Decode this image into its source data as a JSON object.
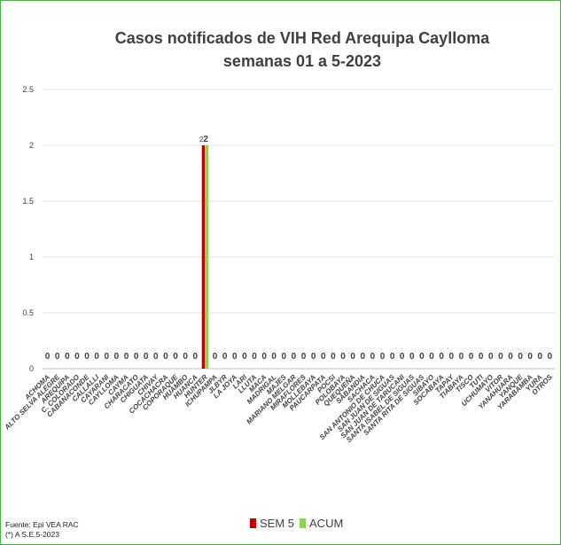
{
  "chart_data": {
    "type": "bar",
    "title": "Casos notificados de VIH Red Arequipa Caylloma",
    "subtitle": "semanas 01 a 5-2023",
    "ylim": [
      0,
      2.5
    ],
    "yticks": [
      "0",
      "0.5",
      "1",
      "1.5",
      "2",
      "2.5"
    ],
    "grid": true,
    "legend_position": "bottom",
    "categories": [
      "ACHOMA",
      "ALTO SELVA ALEGRE",
      "AREQUIPA",
      "C. COLORADO",
      "CABANACONDE",
      "CALLALLI",
      "CAYARANI",
      "CAYLLOMA",
      "CAYMA",
      "CHARACATO",
      "CHIGUATA",
      "CHIVAY",
      "COCACHACRA",
      "COPORAQUE",
      "HUAMBO",
      "HUANCA",
      "HUNTER",
      "ICHUPAMPA",
      "JLBYR",
      "LA JOYA",
      "LARI",
      "LLUTA",
      "MACA",
      "MADRIGAL",
      "MAJES",
      "MARIANO MELGAR",
      "MIRAFLORES",
      "MOLLEBAYA",
      "PAUCARPATA",
      "POCSI",
      "POLOBAYA",
      "QUEQUEÑA",
      "SABANDIA",
      "SACHACA",
      "SAN ANTONIO DE CHUCA",
      "SAN JUAN DE SIGUAS",
      "SAN JUAN DE TARUCANI",
      "SANTA ISABEL DE SIGUAS",
      "SANTA RITA DE SIGUAS",
      "SIBAYO",
      "SOCABAYA",
      "TAPAY",
      "TIABAYA",
      "TISCO",
      "TUTI",
      "UCHUMAYO",
      "VITOR",
      "YANAHUARA",
      "YANQUE",
      "YARABAMBA",
      "YURA",
      "OTROS"
    ],
    "series": [
      {
        "name": "SEM 5",
        "color": "#c00000",
        "values": [
          0,
          0,
          0,
          0,
          0,
          0,
          0,
          0,
          0,
          0,
          0,
          0,
          0,
          0,
          0,
          0,
          2,
          0,
          0,
          0,
          0,
          0,
          0,
          0,
          0,
          0,
          0,
          0,
          0,
          0,
          0,
          0,
          0,
          0,
          0,
          0,
          0,
          0,
          0,
          0,
          0,
          0,
          0,
          0,
          0,
          0,
          0,
          0,
          0,
          0,
          0,
          0
        ]
      },
      {
        "name": "ACUM",
        "color": "#92d050",
        "values": [
          0,
          0,
          0,
          0,
          0,
          0,
          0,
          0,
          0,
          0,
          0,
          0,
          0,
          0,
          0,
          0,
          2,
          0,
          0,
          0,
          0,
          0,
          0,
          0,
          0,
          0,
          0,
          0,
          0,
          0,
          0,
          0,
          0,
          0,
          0,
          0,
          0,
          0,
          0,
          0,
          0,
          0,
          0,
          0,
          0,
          0,
          0,
          0,
          0,
          0,
          0,
          0
        ]
      }
    ]
  },
  "footer": {
    "source_line": "Fuente: Epi VEA RAC",
    "note_line": "(*) A S.E.5-2023"
  },
  "legend": {
    "sem_label": "SEM 5",
    "acum_label": "ACUM"
  }
}
